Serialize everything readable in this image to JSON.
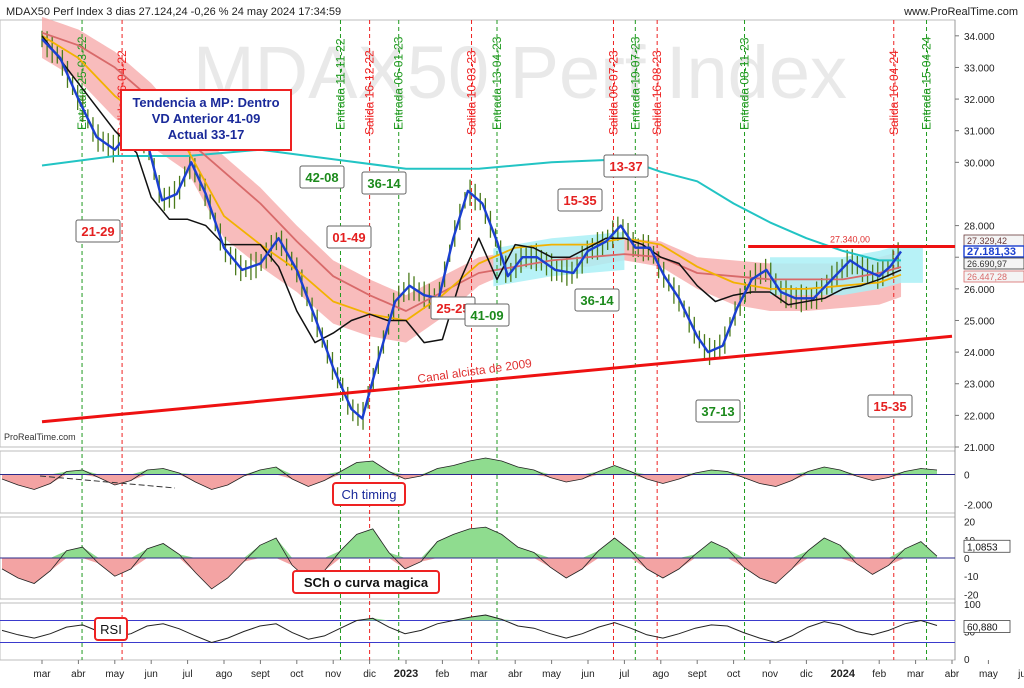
{
  "header": {
    "title": "MDAX50 Perf Index 3 dias 27.124,24 -0,26 % 24 may 2024 17:34:59",
    "site": "www.ProRealTime.com",
    "watermark": "MDAX50 Perf Index",
    "brand": "ProRealTime.com"
  },
  "colors": {
    "price": "#1a3fd0",
    "sma_black": "#111111",
    "ma_yellow": "#f2b200",
    "ma_red": "#d86a6a",
    "ma_cyan": "#22c4c4",
    "cloud_red": "#f6a6a6",
    "cloud_cyan": "#aaf0f6",
    "bars": "#4a7a1a",
    "trend": "#ee1111",
    "entry": "#1f9a1f",
    "exit": "#ee2222",
    "osc_pos": "#8fdc8f",
    "osc_neg": "#f3a3a3"
  },
  "chart_data": [
    {
      "type": "line",
      "title": "MDAX50 Perf Index",
      "x_ticks": [
        "mar",
        "abr",
        "may",
        "jun",
        "jul",
        "ago",
        "sept",
        "oct",
        "nov",
        "dic",
        "2023",
        "feb",
        "mar",
        "abr",
        "may",
        "jun",
        "jul",
        "ago",
        "sept",
        "oct",
        "nov",
        "dic",
        "2024",
        "feb",
        "mar",
        "abr",
        "may",
        "jun"
      ],
      "y_ticks": [
        "34.000",
        "33.000",
        "32.000",
        "31.000",
        "30.000",
        "28.000",
        "27.000",
        "26.000",
        "25.000",
        "24.000",
        "23.000",
        "22.000",
        "21.000"
      ],
      "ylim": [
        21000,
        34500
      ],
      "series": [
        {
          "key": "price",
          "values": [
            [
              0,
              33900
            ],
            [
              0.5,
              33300
            ],
            [
              1,
              32000
            ],
            [
              1.5,
              30800
            ],
            [
              2,
              30400
            ],
            [
              2.5,
              31100
            ],
            [
              2.9,
              30600
            ],
            [
              3.3,
              28800
            ],
            [
              3.7,
              29000
            ],
            [
              4.1,
              30000
            ],
            [
              4.5,
              29000
            ],
            [
              5,
              27300
            ],
            [
              5.5,
              26600
            ],
            [
              6,
              26800
            ],
            [
              6.5,
              27600
            ],
            [
              7,
              26600
            ],
            [
              7.5,
              25100
            ],
            [
              8,
              23500
            ],
            [
              8.5,
              22200
            ],
            [
              8.8,
              21900
            ],
            [
              9.3,
              24000
            ],
            [
              9.7,
              25600
            ],
            [
              10.1,
              26100
            ],
            [
              10.5,
              25800
            ],
            [
              10.9,
              25700
            ],
            [
              11.3,
              27600
            ],
            [
              11.7,
              29100
            ],
            [
              12.1,
              28700
            ],
            [
              12.5,
              27500
            ],
            [
              12.8,
              26400
            ],
            [
              13.2,
              27000
            ],
            [
              13.6,
              27000
            ],
            [
              14.1,
              26600
            ],
            [
              14.6,
              26500
            ],
            [
              15,
              27200
            ],
            [
              15.5,
              27500
            ],
            [
              15.9,
              28000
            ],
            [
              16.3,
              27300
            ],
            [
              16.7,
              27300
            ],
            [
              17.1,
              26400
            ],
            [
              17.5,
              25700
            ],
            [
              18,
              24500
            ],
            [
              18.3,
              24000
            ],
            [
              18.7,
              24200
            ],
            [
              19.1,
              25400
            ],
            [
              19.5,
              26300
            ],
            [
              19.9,
              26600
            ],
            [
              20.3,
              25900
            ],
            [
              20.7,
              25700
            ],
            [
              21.2,
              25700
            ],
            [
              21.7,
              26300
            ],
            [
              22.2,
              26900
            ],
            [
              22.6,
              26600
            ],
            [
              23,
              26400
            ],
            [
              23.3,
              26700
            ],
            [
              23.6,
              27181
            ]
          ]
        },
        {
          "key": "sma_black",
          "values": [
            [
              0,
              34000
            ],
            [
              1,
              32500
            ],
            [
              2,
              31000
            ],
            [
              2.6,
              30300
            ],
            [
              3,
              28900
            ],
            [
              3.5,
              28200
            ],
            [
              4,
              28200
            ],
            [
              4.5,
              28000
            ],
            [
              5,
              27400
            ],
            [
              5.5,
              27400
            ],
            [
              6,
              27400
            ],
            [
              6.5,
              26700
            ],
            [
              7,
              25300
            ],
            [
              7.5,
              24300
            ],
            [
              8,
              24600
            ],
            [
              8.5,
              25000
            ],
            [
              9,
              25200
            ],
            [
              9.5,
              25000
            ],
            [
              10,
              25000
            ],
            [
              10.5,
              24300
            ],
            [
              11,
              24400
            ],
            [
              11.5,
              26300
            ],
            [
              12,
              27600
            ],
            [
              12.5,
              26300
            ],
            [
              13,
              27400
            ],
            [
              13.5,
              27300
            ],
            [
              14,
              27000
            ],
            [
              14.5,
              27000
            ],
            [
              15,
              27300
            ],
            [
              15.5,
              27600
            ],
            [
              16,
              27600
            ],
            [
              16.5,
              27400
            ],
            [
              17,
              27000
            ],
            [
              17.5,
              26800
            ],
            [
              18,
              26100
            ],
            [
              18.5,
              25600
            ],
            [
              19,
              25800
            ],
            [
              19.5,
              25900
            ],
            [
              20,
              25900
            ],
            [
              20.5,
              25500
            ],
            [
              21,
              25600
            ],
            [
              21.5,
              25700
            ],
            [
              22,
              26000
            ],
            [
              22.5,
              26100
            ],
            [
              23,
              26300
            ],
            [
              23.6,
              26600
            ]
          ]
        },
        {
          "key": "ma_yellow",
          "values": [
            [
              0,
              34000
            ],
            [
              1,
              33300
            ],
            [
              2,
              32100
            ],
            [
              3,
              31200
            ],
            [
              4,
              30400
            ],
            [
              5,
              28300
            ],
            [
              6,
              27400
            ],
            [
              7,
              26600
            ],
            [
              8,
              25600
            ],
            [
              9,
              25200
            ],
            [
              10,
              25000
            ],
            [
              11,
              25800
            ],
            [
              12,
              26800
            ],
            [
              13,
              27300
            ],
            [
              14,
              27400
            ],
            [
              15,
              27400
            ],
            [
              16,
              27600
            ],
            [
              17,
              27400
            ],
            [
              18,
              26700
            ],
            [
              19,
              26200
            ],
            [
              20,
              26000
            ],
            [
              21,
              26000
            ],
            [
              22,
              26100
            ],
            [
              23,
              26200
            ],
            [
              23.6,
              26447
            ]
          ]
        },
        {
          "key": "ma_red",
          "values": [
            [
              0,
              34100
            ],
            [
              1,
              33700
            ],
            [
              2,
              33000
            ],
            [
              3,
              32000
            ],
            [
              4,
              30700
            ],
            [
              5,
              29700
            ],
            [
              6,
              28700
            ],
            [
              7,
              27500
            ],
            [
              8,
              26400
            ],
            [
              9,
              25800
            ],
            [
              10,
              25300
            ],
            [
              11,
              25900
            ],
            [
              12,
              26500
            ],
            [
              13,
              26700
            ],
            [
              14,
              26900
            ],
            [
              15,
              27000
            ],
            [
              16,
              27100
            ],
            [
              17,
              27000
            ],
            [
              18,
              26500
            ],
            [
              19,
              26400
            ],
            [
              20,
              26300
            ],
            [
              21,
              26300
            ],
            [
              22,
              26300
            ],
            [
              23,
              26500
            ],
            [
              23.6,
              26690
            ]
          ]
        },
        {
          "key": "ma_cyan",
          "values": [
            [
              0,
              29900
            ],
            [
              2,
              30200
            ],
            [
              4,
              30200
            ],
            [
              6,
              30400
            ],
            [
              8,
              30100
            ],
            [
              10,
              29800
            ],
            [
              12,
              29800
            ],
            [
              14,
              30000
            ],
            [
              16,
              30100
            ],
            [
              17,
              29700
            ],
            [
              18,
              29400
            ],
            [
              19,
              28700
            ],
            [
              20,
              28100
            ],
            [
              21,
              27600
            ],
            [
              22,
              27200
            ],
            [
              23,
              26900
            ],
            [
              23.6,
              26900
            ]
          ]
        }
      ],
      "trendlines": [
        {
          "from": [
            0,
            21800
          ],
          "to": [
            25,
            24500
          ],
          "label": "Canal alcista de 2009"
        },
        {
          "from": [
            19.4,
            27340
          ],
          "to": [
            25,
            27340
          ],
          "label": "27.340,00"
        }
      ],
      "price_labels": [
        "27.329,42",
        "27.181,33",
        "26.690,97",
        "26.447,28"
      ],
      "signals": [
        {
          "x": 1.1,
          "kind": "entry",
          "text": "Entrada 25-03-22"
        },
        {
          "x": 2.2,
          "kind": "exit",
          "text": "Salida 26-04-22"
        },
        {
          "x": 8.2,
          "kind": "entry",
          "text": "Entrada 11-11-22"
        },
        {
          "x": 9,
          "kind": "exit",
          "text": "Salida 16-12-22"
        },
        {
          "x": 9.8,
          "kind": "entry",
          "text": "Entrada 06-01-23"
        },
        {
          "x": 11.8,
          "kind": "exit",
          "text": "Salida 10-03-23"
        },
        {
          "x": 12.5,
          "kind": "entry",
          "text": "Entrada 13-04-23"
        },
        {
          "x": 15.7,
          "kind": "exit",
          "text": "Salida 06-07-23"
        },
        {
          "x": 16.3,
          "kind": "entry",
          "text": "Entrada 19-07-23"
        },
        {
          "x": 16.9,
          "kind": "exit",
          "text": "Salida 16-08-23"
        },
        {
          "x": 19.3,
          "kind": "entry",
          "text": "Entrada 08-11-23"
        },
        {
          "x": 23.4,
          "kind": "exit",
          "text": "Salida 16-04-24"
        },
        {
          "x": 24.3,
          "kind": "entry",
          "text": "Entrada 15-04-24"
        }
      ],
      "annotations": [
        {
          "text": "21-29",
          "color": "red"
        },
        {
          "text": "42-08",
          "color": "green"
        },
        {
          "text": "36-14",
          "color": "green"
        },
        {
          "text": "01-49",
          "color": "red"
        },
        {
          "text": "25-25",
          "color": "red"
        },
        {
          "text": "41-09",
          "color": "green"
        },
        {
          "text": "15-35",
          "color": "red"
        },
        {
          "text": "36-14",
          "color": "green"
        },
        {
          "text": "13-37",
          "color": "red"
        },
        {
          "text": "37-13",
          "color": "green"
        },
        {
          "text": "15-35",
          "color": "red"
        }
      ],
      "info_box": [
        "Tendencia a MP: Dentro",
        "VD Anterior 41-09",
        "Actual 33-17"
      ]
    },
    {
      "type": "area",
      "title": "Ch timing",
      "y_ticks": [
        "0",
        "-2.000"
      ],
      "values": [
        -300,
        -700,
        -1000,
        -600,
        200,
        300,
        -200,
        -700,
        -400,
        300,
        400,
        100,
        -500,
        -1000,
        -700,
        -100,
        300,
        500,
        -300,
        -800,
        -400,
        200,
        800,
        900,
        200,
        -300,
        -100,
        400,
        600,
        900,
        1100,
        900,
        500,
        300,
        -200,
        -500,
        -300,
        200,
        600,
        200,
        -300,
        -600,
        -300,
        100,
        300,
        200,
        -200,
        -600,
        -800,
        -400,
        200,
        500,
        300,
        -100,
        -400,
        -200,
        200,
        400,
        300
      ]
    },
    {
      "type": "area",
      "title": "SCh o curva magica",
      "y_ticks": [
        "20",
        "10",
        "0",
        "-10",
        "-20"
      ],
      "current": "1,0853",
      "values": [
        -6,
        -11,
        -14,
        -7,
        4,
        6,
        -3,
        -10,
        -6,
        5,
        8,
        2,
        -8,
        -17,
        -11,
        -2,
        7,
        11,
        -4,
        -12,
        -7,
        4,
        13,
        16,
        3,
        -6,
        -2,
        9,
        13,
        16,
        17,
        13,
        6,
        3,
        -5,
        -11,
        -6,
        4,
        11,
        4,
        -6,
        -11,
        -6,
        2,
        9,
        5,
        -5,
        -11,
        -14,
        -6,
        4,
        11,
        7,
        -3,
        -9,
        -4,
        5,
        9,
        1
      ]
    },
    {
      "type": "line",
      "title": "RSI",
      "y_ticks": [
        "100",
        "50",
        "0"
      ],
      "current": "60,880",
      "values": [
        52,
        44,
        38,
        46,
        58,
        62,
        50,
        40,
        46,
        60,
        64,
        55,
        42,
        30,
        38,
        50,
        60,
        64,
        48,
        36,
        42,
        56,
        70,
        74,
        58,
        46,
        52,
        64,
        70,
        76,
        80,
        72,
        60,
        56,
        46,
        38,
        46,
        58,
        66,
        56,
        44,
        38,
        46,
        56,
        62,
        60,
        48,
        38,
        30,
        42,
        58,
        68,
        62,
        50,
        44,
        52,
        64,
        70,
        61
      ]
    }
  ]
}
